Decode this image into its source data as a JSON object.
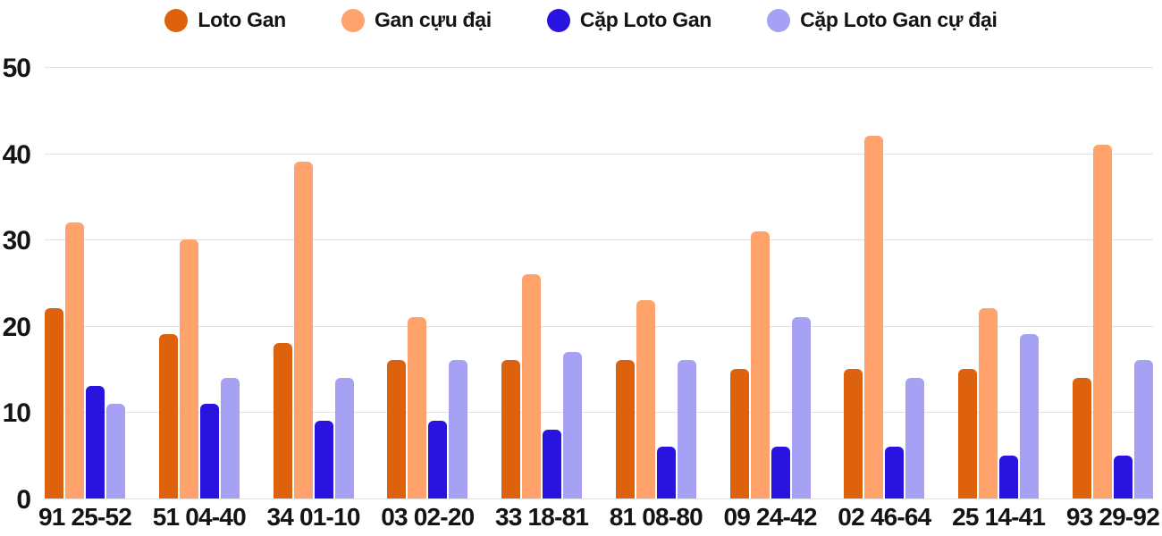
{
  "chart_data": {
    "type": "bar",
    "title": "",
    "xlabel": "",
    "ylabel": "",
    "categories": [
      "91 25-52",
      "51 04-40",
      "34 01-10",
      "03 02-20",
      "33 18-81",
      "81 08-80",
      "09 24-42",
      "02 46-64",
      "25 14-41",
      "93 29-92"
    ],
    "series": [
      {
        "name": "Loto Gan",
        "color": "#DE620E",
        "values": [
          22,
          19,
          18,
          16,
          16,
          16,
          15,
          15,
          15,
          14
        ]
      },
      {
        "name": "Gan cựu đại",
        "color": "#FFA26B",
        "values": [
          32,
          30,
          39,
          21,
          26,
          23,
          31,
          42,
          22,
          41
        ]
      },
      {
        "name": "Cặp Loto Gan",
        "color": "#2913DE",
        "values": [
          13,
          11,
          9,
          9,
          8,
          6,
          6,
          6,
          5,
          5
        ]
      },
      {
        "name": "Cặp Loto Gan cự đại",
        "color": "#A6A1F4",
        "values": [
          11,
          14,
          14,
          16,
          17,
          16,
          21,
          14,
          19,
          16
        ]
      }
    ],
    "yticks": [
      0,
      10,
      20,
      30,
      40,
      50
    ],
    "ylim": [
      0,
      50
    ],
    "grid": true,
    "legend_position": "top"
  },
  "style": {
    "grid_color": "#e2e2e2",
    "text_color": "#141414",
    "background": "#ffffff"
  }
}
